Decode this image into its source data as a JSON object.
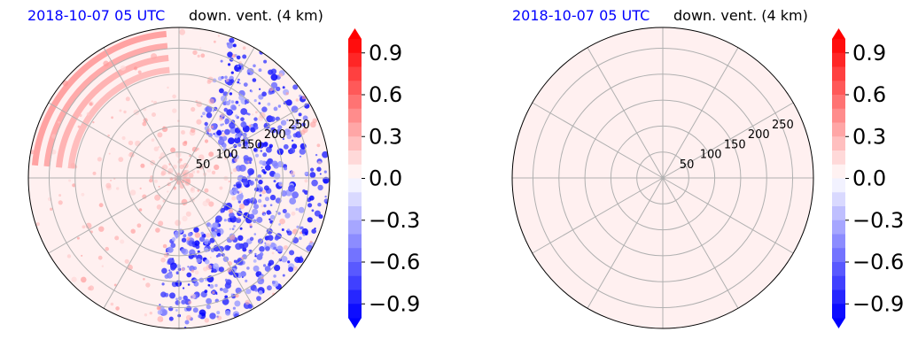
{
  "panels": [
    {
      "id": "left",
      "time_label": "2018-10-07 05 UTC",
      "field_label": "down. vent. (4 km)",
      "has_data_pattern": true
    },
    {
      "id": "right",
      "time_label": "2018-10-07 05 UTC",
      "field_label": "down. vent. (4 km)",
      "has_data_pattern": false
    }
  ],
  "polar": {
    "range_rings": [
      50,
      100,
      150,
      200,
      250
    ],
    "azimuth_spokes_deg": [
      0,
      30,
      60,
      90,
      120,
      150,
      180,
      210,
      240,
      270,
      300,
      330
    ],
    "max_range": 290
  },
  "colorbar": {
    "ticks": [
      "0.9",
      "0.6",
      "0.3",
      "0.0",
      "−0.3",
      "−0.6",
      "−0.9"
    ],
    "tick_values": [
      0.9,
      0.6,
      0.3,
      0.0,
      -0.3,
      -0.6,
      -0.9
    ],
    "vmin": -1.0,
    "vmax": 1.0,
    "step": 0.1,
    "extend": "both",
    "colormap": "bwr"
  },
  "colors": {
    "time_label": "#0000ff",
    "field_label": "#000000",
    "grid": "#b0b0b0",
    "empty_field_fill": "#fff0f0"
  }
}
